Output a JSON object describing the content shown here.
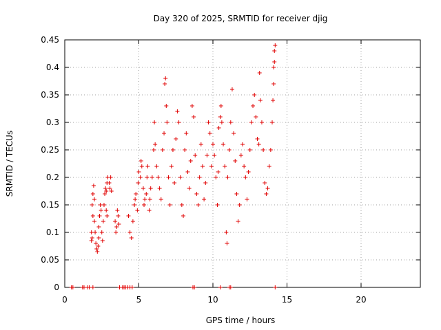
{
  "chart_data": {
    "type": "scatter",
    "title": "Day 320 of 2025, SRMTID for receiver djig",
    "xlabel": "GPS time / hours",
    "ylabel": "SRMTID / TECUs",
    "xlim": [
      0,
      24
    ],
    "ylim": [
      0,
      0.45
    ],
    "x_ticks": [
      "0",
      "5",
      "10",
      "15",
      "20"
    ],
    "y_ticks": [
      "0",
      "0.05",
      "0.1",
      "0.15",
      "0.2",
      "0.25",
      "0.3",
      "0.35",
      "0.4",
      "0.45"
    ],
    "grid": true,
    "legend": "none",
    "marker": "+",
    "color": "#e00000",
    "series": [
      {
        "points": [
          [
            0.45,
            0
          ],
          [
            0.55,
            0
          ],
          [
            1.2,
            0
          ],
          [
            1.3,
            0
          ],
          [
            1.55,
            0
          ],
          [
            1.65,
            0
          ],
          [
            1.9,
            0
          ],
          [
            1.8,
            0.085
          ],
          [
            1.85,
            0.09
          ],
          [
            1.8,
            0.1
          ],
          [
            1.9,
            0.13
          ],
          [
            1.85,
            0.15
          ],
          [
            1.9,
            0.17
          ],
          [
            1.95,
            0.185
          ],
          [
            2.0,
            0.16
          ],
          [
            2.0,
            0.12
          ],
          [
            2.05,
            0.1
          ],
          [
            2.1,
            0.08
          ],
          [
            2.15,
            0.07
          ],
          [
            2.2,
            0.065
          ],
          [
            2.25,
            0.075
          ],
          [
            2.3,
            0.09
          ],
          [
            2.3,
            0.11
          ],
          [
            2.35,
            0.13
          ],
          [
            2.4,
            0.15
          ],
          [
            2.45,
            0.14
          ],
          [
            2.5,
            0.1
          ],
          [
            2.55,
            0.085
          ],
          [
            2.6,
            0.12
          ],
          [
            2.65,
            0.15
          ],
          [
            2.7,
            0.17
          ],
          [
            2.75,
            0.18
          ],
          [
            2.8,
            0.175
          ],
          [
            2.85,
            0.19
          ],
          [
            2.9,
            0.2
          ],
          [
            3.0,
            0.19
          ],
          [
            3.05,
            0.18
          ],
          [
            3.1,
            0.2
          ],
          [
            3.15,
            0.175
          ],
          [
            2.8,
            0.14
          ],
          [
            2.85,
            0.13
          ],
          [
            3.4,
            0.12
          ],
          [
            3.45,
            0.1
          ],
          [
            3.5,
            0.11
          ],
          [
            3.55,
            0.14
          ],
          [
            3.6,
            0.13
          ],
          [
            3.65,
            0.115
          ],
          [
            3.7,
            0
          ],
          [
            3.9,
            0
          ],
          [
            4.0,
            0
          ],
          [
            4.1,
            0
          ],
          [
            4.25,
            0
          ],
          [
            4.4,
            0
          ],
          [
            4.55,
            0
          ],
          [
            4.3,
            0.13
          ],
          [
            4.4,
            0.1
          ],
          [
            4.5,
            0.09
          ],
          [
            4.6,
            0.12
          ],
          [
            4.7,
            0.15
          ],
          [
            4.75,
            0.16
          ],
          [
            4.8,
            0.17
          ],
          [
            4.9,
            0.14
          ],
          [
            4.95,
            0.19
          ],
          [
            5.0,
            0.21
          ],
          [
            5.1,
            0.2
          ],
          [
            5.15,
            0.23
          ],
          [
            5.2,
            0.22
          ],
          [
            5.3,
            0.18
          ],
          [
            5.35,
            0.15
          ],
          [
            5.4,
            0.16
          ],
          [
            5.5,
            0.17
          ],
          [
            5.55,
            0.2
          ],
          [
            5.6,
            0.22
          ],
          [
            5.7,
            0.14
          ],
          [
            5.75,
            0.16
          ],
          [
            5.8,
            0.18
          ],
          [
            5.9,
            0.2
          ],
          [
            6.0,
            0.25
          ],
          [
            6.05,
            0.3
          ],
          [
            6.1,
            0.26
          ],
          [
            6.2,
            0.22
          ],
          [
            6.3,
            0.2
          ],
          [
            6.4,
            0.18
          ],
          [
            6.5,
            0.16
          ],
          [
            6.6,
            0.25
          ],
          [
            6.7,
            0.28
          ],
          [
            6.75,
            0.37
          ],
          [
            6.8,
            0.38
          ],
          [
            6.85,
            0.33
          ],
          [
            6.9,
            0.3
          ],
          [
            7.0,
            0.2
          ],
          [
            7.1,
            0.15
          ],
          [
            7.2,
            0.22
          ],
          [
            7.3,
            0.25
          ],
          [
            7.4,
            0.19
          ],
          [
            7.5,
            0.27
          ],
          [
            7.6,
            0.32
          ],
          [
            7.7,
            0.3
          ],
          [
            7.8,
            0.2
          ],
          [
            7.9,
            0.15
          ],
          [
            8.0,
            0.13
          ],
          [
            8.1,
            0.25
          ],
          [
            8.2,
            0.28
          ],
          [
            8.3,
            0.21
          ],
          [
            8.4,
            0.18
          ],
          [
            8.5,
            0.23
          ],
          [
            8.6,
            0.33
          ],
          [
            8.7,
            0.31
          ],
          [
            8.8,
            0.24
          ],
          [
            8.9,
            0.17
          ],
          [
            9.0,
            0.15
          ],
          [
            9.1,
            0.2
          ],
          [
            9.2,
            0.26
          ],
          [
            9.3,
            0.22
          ],
          [
            9.4,
            0.16
          ],
          [
            9.5,
            0.19
          ],
          [
            9.6,
            0.24
          ],
          [
            9.7,
            0.3
          ],
          [
            9.8,
            0.28
          ],
          [
            9.9,
            0.22
          ],
          [
            10.0,
            0.26
          ],
          [
            10.1,
            0.24
          ],
          [
            10.2,
            0.2
          ],
          [
            10.3,
            0.15
          ],
          [
            10.35,
            0.21
          ],
          [
            10.4,
            0.29
          ],
          [
            10.5,
            0.31
          ],
          [
            10.55,
            0.33
          ],
          [
            10.6,
            0.3
          ],
          [
            10.7,
            0.26
          ],
          [
            10.8,
            0.22
          ],
          [
            10.9,
            0.1
          ],
          [
            10.95,
            0.08
          ],
          [
            11.0,
            0.2
          ],
          [
            11.1,
            0.25
          ],
          [
            11.2,
            0.3
          ],
          [
            11.3,
            0.36
          ],
          [
            11.4,
            0.28
          ],
          [
            11.5,
            0.23
          ],
          [
            11.6,
            0.17
          ],
          [
            11.7,
            0.12
          ],
          [
            11.8,
            0.15
          ],
          [
            11.9,
            0.24
          ],
          [
            12.0,
            0.26
          ],
          [
            12.1,
            0.22
          ],
          [
            12.2,
            0.2
          ],
          [
            12.3,
            0.16
          ],
          [
            12.4,
            0.21
          ],
          [
            12.5,
            0.25
          ],
          [
            12.6,
            0.3
          ],
          [
            12.7,
            0.33
          ],
          [
            12.8,
            0.35
          ],
          [
            12.9,
            0.31
          ],
          [
            13.0,
            0.27
          ],
          [
            13.1,
            0.26
          ],
          [
            13.15,
            0.39
          ],
          [
            13.2,
            0.34
          ],
          [
            13.3,
            0.3
          ],
          [
            13.4,
            0.25
          ],
          [
            13.5,
            0.19
          ],
          [
            13.6,
            0.17
          ],
          [
            13.7,
            0.18
          ],
          [
            13.8,
            0.22
          ],
          [
            13.9,
            0.25
          ],
          [
            14.0,
            0.3
          ],
          [
            14.05,
            0.34
          ],
          [
            14.1,
            0.4
          ],
          [
            14.15,
            0.43
          ],
          [
            14.2,
            0.44
          ],
          [
            14.15,
            0.41
          ],
          [
            14.1,
            0.37
          ],
          [
            8.65,
            0
          ],
          [
            8.75,
            0
          ],
          [
            10.5,
            0
          ],
          [
            11.1,
            0
          ],
          [
            11.2,
            0
          ],
          [
            14.2,
            0
          ]
        ]
      }
    ]
  }
}
